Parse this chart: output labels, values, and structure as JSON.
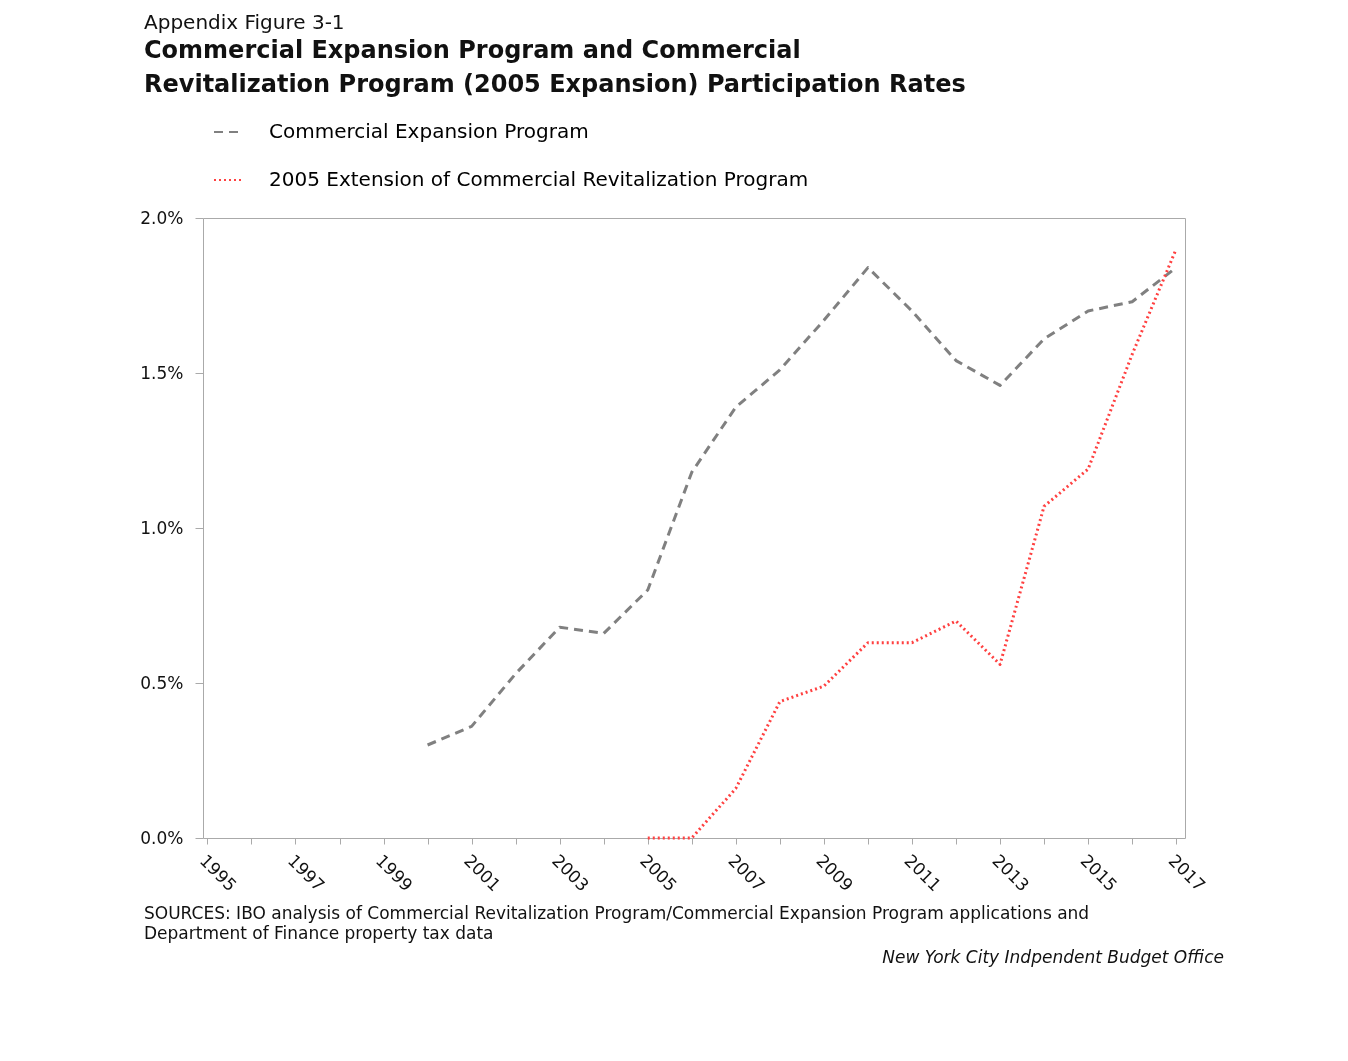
{
  "chart_data": {
    "type": "line",
    "title": "Commercial Expansion Program and Commercial\nRevitalization Program (2005 Expansion) Participation Rates",
    "subtitle": "Appendix Figure 3-1",
    "annotations": [
      "SOURCES: IBO analysis of Commercial Revitalization Program/Commercial Expansion Program applications and\nDepartment of Finance property tax data",
      "New York City Indpendent Budget Office"
    ],
    "xlim": [
      1994.9,
      2017.2
    ],
    "xticks": [
      1995,
      {
        "value": 1996,
        "label": null
      },
      1997,
      {
        "value": 1998,
        "label": null
      },
      1999,
      {
        "value": 2000,
        "label": null
      },
      2001,
      {
        "value": 2002,
        "label": null
      },
      2003,
      {
        "value": 2004,
        "label": null
      },
      2005,
      {
        "value": 2006,
        "label": null
      },
      2007,
      {
        "value": 2008,
        "label": null
      },
      2009,
      {
        "value": 2010,
        "label": null
      },
      2011,
      {
        "value": 2012,
        "label": null
      },
      2013,
      {
        "value": 2014,
        "label": null
      },
      2015,
      {
        "value": 2016,
        "label": null
      },
      2017
    ],
    "ylim": [
      0,
      2
    ],
    "yticks": [
      {
        "value": 0,
        "label": "0.0%"
      },
      {
        "value": 0.5,
        "label": "0.5%"
      },
      {
        "value": 1,
        "label": "1.0%"
      },
      {
        "value": 1.5,
        "label": "1.5%"
      },
      {
        "value": 2,
        "label": "2.0%"
      }
    ],
    "grid": false,
    "legend": "top left",
    "series": [
      {
        "name": "Commercial Expansion Program",
        "color": "#808080",
        "line_style": "dashed",
        "x": [
          2000,
          2001,
          2002,
          2003,
          2004,
          2005,
          2006,
          2007,
          2008,
          2009,
          2010,
          2011,
          2012,
          2013,
          2014,
          2015,
          2016,
          2017
        ],
        "values": [
          0.3,
          0.36,
          0.53,
          0.68,
          0.66,
          0.8,
          1.18,
          1.39,
          1.51,
          1.67,
          1.84,
          1.7,
          1.54,
          1.46,
          1.61,
          1.7,
          1.73,
          1.84
        ]
      },
      {
        "name": "2005 Extension of Commercial Revitalization Program",
        "color": "#ff4040",
        "line_style": "dotted",
        "x": [
          2005,
          2006,
          2007,
          2008,
          2009,
          2010,
          2011,
          2012,
          2013,
          2014,
          2015,
          2016,
          2017
        ],
        "values": [
          0,
          0,
          0.16,
          0.44,
          0.49,
          0.63,
          0.63,
          0.7,
          0.56,
          1.07,
          1.19,
          1.56,
          1.9
        ]
      }
    ]
  }
}
